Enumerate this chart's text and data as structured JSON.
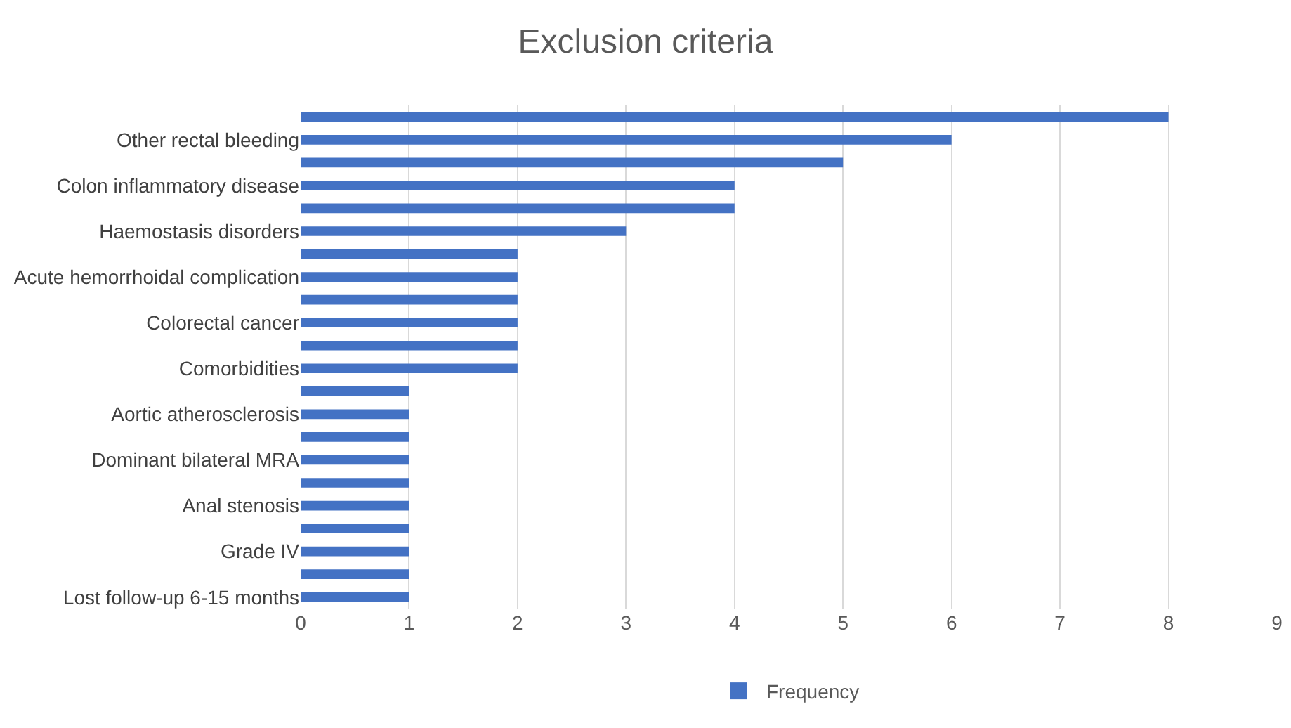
{
  "chart_data": {
    "type": "bar",
    "orientation": "horizontal",
    "title": "Exclusion criteria",
    "categories": [
      null,
      "Other rectal bleeding",
      null,
      "Colon inflammatory disease",
      null,
      "Haemostasis disorders",
      null,
      "Acute hemorrhoidal complication",
      null,
      "Colorectal cancer",
      null,
      "Comorbidities",
      null,
      "Aortic atherosclerosis",
      null,
      "Dominant bilateral MRA",
      null,
      "Anal stenosis",
      null,
      "Grade IV",
      null,
      "Lost follow-up 6-15 months"
    ],
    "series": [
      {
        "name": "Frequency",
        "color": "#4472c4",
        "values": [
          8,
          6,
          5,
          4,
          4,
          3,
          2,
          2,
          2,
          2,
          2,
          2,
          1,
          1,
          1,
          1,
          1,
          1,
          1,
          1,
          1,
          1
        ]
      }
    ],
    "xlim": [
      0,
      9
    ],
    "xticks": [
      0,
      1,
      2,
      3,
      4,
      5,
      6,
      7,
      8,
      9
    ],
    "grid": "x",
    "legend": "bottom"
  }
}
